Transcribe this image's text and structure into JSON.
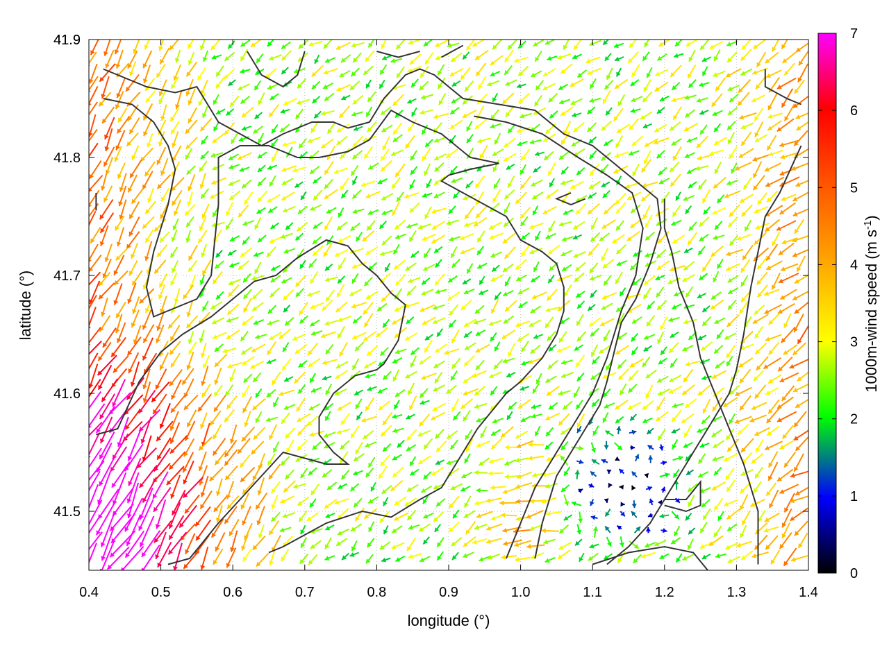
{
  "chart_data": {
    "type": "vector-field",
    "xlabel": "longitude (°)",
    "ylabel": "latitude (°)",
    "xlim": [
      0.4,
      1.4
    ],
    "ylim": [
      41.45,
      41.9
    ],
    "xticks": [
      "0.4",
      "0.5",
      "0.6",
      "0.7",
      "0.8",
      "0.9",
      "1.0",
      "1.1",
      "1.2",
      "1.3",
      "1.4"
    ],
    "yticks": [
      "41.5",
      "41.6",
      "41.7",
      "41.8",
      "41.9"
    ],
    "colorbar": {
      "label_main": "1000m-wind speed (m s",
      "label_sup": "-1",
      "label_close": ")",
      "range": [
        0,
        7
      ],
      "ticks": [
        "0",
        "1",
        "2",
        "3",
        "4",
        "5",
        "6",
        "7"
      ],
      "colors": [
        "#000000",
        "#0000ff",
        "#00aa00",
        "#00ff00",
        "#ffff00",
        "#ffaa00",
        "#ff5500",
        "#ff0000",
        "#ff00ff"
      ]
    },
    "grid": "dotted",
    "vector_field": {
      "description_regions": [
        {
          "name": "southwest",
          "lon": [
            0.4,
            0.65
          ],
          "lat": [
            41.45,
            41.65
          ],
          "speed": [
            5,
            7
          ],
          "direction_deg": 120
        },
        {
          "name": "west",
          "lon": [
            0.4,
            0.55
          ],
          "lat": [
            41.65,
            41.9
          ],
          "speed": [
            4,
            6
          ],
          "direction_deg": 120
        },
        {
          "name": "north-central",
          "lon": [
            0.6,
            1.0
          ],
          "lat": [
            41.7,
            41.9
          ],
          "speed": [
            2,
            4
          ],
          "direction_deg": 140
        },
        {
          "name": "center",
          "lon": [
            0.7,
            1.0
          ],
          "lat": [
            41.5,
            41.7
          ],
          "speed": [
            1.5,
            3.5
          ],
          "direction_deg": 150
        },
        {
          "name": "south-east-calm",
          "lon": [
            1.05,
            1.25
          ],
          "lat": [
            41.47,
            41.6
          ],
          "speed": [
            0,
            1.5
          ],
          "direction_deg": 180
        },
        {
          "name": "east",
          "lon": [
            1.25,
            1.4
          ],
          "lat": [
            41.55,
            41.9
          ],
          "speed": [
            3,
            5.5
          ],
          "direction_deg": 120
        },
        {
          "name": "south-center",
          "lon": [
            0.95,
            1.1
          ],
          "lat": [
            41.45,
            41.6
          ],
          "speed": [
            3.5,
            5.5
          ],
          "direction_deg": 95
        }
      ]
    },
    "contours": [
      [
        [
          0.42,
          41.875
        ],
        [
          0.48,
          41.86
        ],
        [
          0.52,
          41.855
        ],
        [
          0.55,
          41.86
        ],
        [
          0.58,
          41.83
        ],
        [
          0.61,
          41.82
        ],
        [
          0.64,
          41.81
        ],
        [
          0.67,
          41.82
        ],
        [
          0.71,
          41.83
        ],
        [
          0.74,
          41.83
        ],
        [
          0.76,
          41.825
        ],
        [
          0.79,
          41.83
        ],
        [
          0.81,
          41.85
        ],
        [
          0.84,
          41.87
        ],
        [
          0.86,
          41.875
        ],
        [
          0.88,
          41.87
        ],
        [
          0.92,
          41.85
        ],
        [
          0.97,
          41.845
        ],
        [
          1.02,
          41.84
        ],
        [
          1.06,
          41.82
        ],
        [
          1.1,
          41.81
        ],
        [
          1.14,
          41.79
        ],
        [
          1.16,
          41.78
        ],
        [
          1.18,
          41.77
        ],
        [
          1.19,
          41.765
        ],
        [
          1.195,
          41.74
        ],
        [
          1.18,
          41.71
        ],
        [
          1.16,
          41.68
        ],
        [
          1.14,
          41.66
        ],
        [
          1.12,
          41.61
        ],
        [
          1.11,
          41.59
        ],
        [
          1.08,
          41.56
        ],
        [
          1.05,
          41.53
        ],
        [
          1.03,
          41.49
        ],
        [
          1.02,
          41.46
        ]
      ],
      [
        [
          0.42,
          41.85
        ],
        [
          0.46,
          41.845
        ],
        [
          0.49,
          41.83
        ],
        [
          0.51,
          41.81
        ],
        [
          0.52,
          41.79
        ],
        [
          0.51,
          41.76
        ],
        [
          0.49,
          41.72
        ],
        [
          0.48,
          41.69
        ],
        [
          0.49,
          41.665
        ],
        [
          0.51,
          41.67
        ],
        [
          0.55,
          41.68
        ],
        [
          0.57,
          41.7
        ],
        [
          0.58,
          41.76
        ],
        [
          0.58,
          41.8
        ],
        [
          0.61,
          41.81
        ],
        [
          0.65,
          41.81
        ],
        [
          0.69,
          41.8
        ],
        [
          0.72,
          41.8
        ],
        [
          0.76,
          41.805
        ],
        [
          0.79,
          41.815
        ],
        [
          0.82,
          41.84
        ],
        [
          0.85,
          41.83
        ],
        [
          0.89,
          41.82
        ],
        [
          0.93,
          41.8
        ],
        [
          0.97,
          41.795
        ],
        [
          0.93,
          41.79
        ],
        [
          0.9,
          41.785
        ],
        [
          0.89,
          41.78
        ],
        [
          0.92,
          41.77
        ],
        [
          0.95,
          41.76
        ],
        [
          0.98,
          41.75
        ],
        [
          1.0,
          41.73
        ],
        [
          1.03,
          41.72
        ],
        [
          1.05,
          41.71
        ],
        [
          1.06,
          41.69
        ],
        [
          1.06,
          41.67
        ],
        [
          1.05,
          41.65
        ],
        [
          1.03,
          41.63
        ],
        [
          1.0,
          41.61
        ],
        [
          0.98,
          41.6
        ],
        [
          0.96,
          41.585
        ],
        [
          0.94,
          41.57
        ],
        [
          0.92,
          41.55
        ],
        [
          0.89,
          41.52
        ],
        [
          0.86,
          41.51
        ],
        [
          0.82,
          41.495
        ],
        [
          0.78,
          41.5
        ],
        [
          0.73,
          41.49
        ],
        [
          0.7,
          41.48
        ],
        [
          0.67,
          41.47
        ],
        [
          0.65,
          41.465
        ]
      ],
      [
        [
          0.41,
          41.565
        ],
        [
          0.44,
          41.57
        ],
        [
          0.47,
          41.61
        ],
        [
          0.5,
          41.635
        ],
        [
          0.53,
          41.65
        ],
        [
          0.57,
          41.665
        ],
        [
          0.6,
          41.68
        ],
        [
          0.63,
          41.695
        ],
        [
          0.66,
          41.7
        ],
        [
          0.69,
          41.715
        ],
        [
          0.73,
          41.73
        ],
        [
          0.76,
          41.725
        ],
        [
          0.78,
          41.71
        ],
        [
          0.8,
          41.7
        ],
        [
          0.82,
          41.685
        ],
        [
          0.84,
          41.675
        ],
        [
          0.83,
          41.645
        ],
        [
          0.81,
          41.625
        ],
        [
          0.8,
          41.62
        ],
        [
          0.77,
          41.615
        ],
        [
          0.74,
          41.6
        ],
        [
          0.72,
          41.58
        ],
        [
          0.72,
          41.565
        ],
        [
          0.74,
          41.55
        ],
        [
          0.76,
          41.54
        ],
        [
          0.73,
          41.54
        ],
        [
          0.7,
          41.545
        ],
        [
          0.67,
          41.55
        ],
        [
          0.64,
          41.53
        ],
        [
          0.61,
          41.51
        ],
        [
          0.58,
          41.49
        ],
        [
          0.56,
          41.475
        ],
        [
          0.54,
          41.46
        ],
        [
          0.51,
          41.455
        ]
      ],
      [
        [
          0.935,
          41.835
        ],
        [
          0.98,
          41.83
        ],
        [
          1.03,
          41.82
        ],
        [
          1.08,
          41.8
        ],
        [
          1.12,
          41.785
        ],
        [
          1.155,
          41.77
        ],
        [
          1.17,
          41.74
        ],
        [
          1.16,
          41.7
        ],
        [
          1.14,
          41.67
        ],
        [
          1.12,
          41.63
        ],
        [
          1.1,
          41.6
        ],
        [
          1.07,
          41.57
        ],
        [
          1.05,
          41.55
        ],
        [
          1.02,
          41.52
        ],
        [
          1.0,
          41.49
        ],
        [
          0.98,
          41.46
        ]
      ],
      [
        [
          1.33,
          41.455
        ],
        [
          1.33,
          41.5
        ],
        [
          1.31,
          41.54
        ],
        [
          1.29,
          41.57
        ],
        [
          1.27,
          41.6
        ],
        [
          1.25,
          41.63
        ],
        [
          1.24,
          41.66
        ],
        [
          1.22,
          41.69
        ],
        [
          1.21,
          41.72
        ],
        [
          1.2,
          41.74
        ],
        [
          1.2,
          41.765
        ]
      ],
      [
        [
          1.39,
          41.81
        ],
        [
          1.36,
          41.77
        ],
        [
          1.34,
          41.75
        ],
        [
          1.33,
          41.72
        ],
        [
          1.32,
          41.69
        ],
        [
          1.31,
          41.65
        ],
        [
          1.3,
          41.62
        ],
        [
          1.29,
          41.6
        ],
        [
          1.27,
          41.58
        ],
        [
          1.24,
          41.55
        ],
        [
          1.21,
          41.52
        ],
        [
          1.18,
          41.49
        ],
        [
          1.15,
          41.47
        ],
        [
          1.12,
          41.455
        ]
      ],
      [
        [
          1.1,
          41.455
        ],
        [
          1.15,
          41.465
        ],
        [
          1.2,
          41.47
        ],
        [
          1.24,
          41.465
        ],
        [
          1.26,
          41.45
        ]
      ],
      [
        [
          1.2,
          41.51
        ],
        [
          1.23,
          41.51
        ],
        [
          1.25,
          41.525
        ],
        [
          1.25,
          41.505
        ],
        [
          1.23,
          41.5
        ],
        [
          1.2,
          41.505
        ]
      ],
      [
        [
          0.41,
          41.77
        ],
        [
          0.41,
          41.755
        ]
      ],
      [
        [
          0.62,
          41.89
        ],
        [
          0.64,
          41.87
        ],
        [
          0.67,
          41.86
        ],
        [
          0.69,
          41.87
        ],
        [
          0.7,
          41.89
        ]
      ],
      [
        [
          0.8,
          41.89
        ],
        [
          0.83,
          41.885
        ],
        [
          0.86,
          41.89
        ]
      ],
      [
        [
          0.89,
          41.885
        ],
        [
          0.92,
          41.895
        ]
      ],
      [
        [
          1.07,
          41.77
        ],
        [
          1.05,
          41.765
        ],
        [
          1.07,
          41.76
        ],
        [
          1.09,
          41.765
        ]
      ],
      [
        [
          1.34,
          41.875
        ],
        [
          1.34,
          41.86
        ],
        [
          1.37,
          41.85
        ],
        [
          1.39,
          41.845
        ]
      ]
    ]
  }
}
